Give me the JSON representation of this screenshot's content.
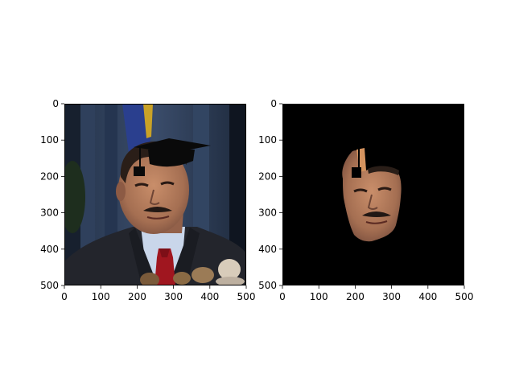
{
  "figure": {
    "background": "#ffffff",
    "axes_color": "#000000"
  },
  "chart_data": [
    {
      "type": "image",
      "content": "photo of a man in a dark suit and red tie at a podium with microphones, wearing a drawn black graduation cap",
      "xlim": [
        0,
        500
      ],
      "ylim": [
        500,
        0
      ],
      "xticks": [
        0,
        100,
        200,
        300,
        400,
        500
      ],
      "yticks": [
        0,
        100,
        200,
        300,
        400,
        500
      ],
      "xtick_labels": [
        "0",
        "100",
        "200",
        "300",
        "400",
        "500"
      ],
      "ytick_labels": [
        "0",
        "100",
        "200",
        "300",
        "400",
        "500"
      ],
      "title": "",
      "xlabel": "",
      "ylabel": "",
      "grid": false,
      "colors": {
        "background_wall": "#2e3d56",
        "suit": "#23252c",
        "shirt": "#c9d6ea",
        "tie": "#a0161f",
        "skin": "#b07a5c",
        "hair": "#2a1e18",
        "cap": "#0a0a0a",
        "flag": "#2a3f8e",
        "flag_gold": "#c9a227"
      }
    },
    {
      "type": "image",
      "content": "segmented face on black background with graduation cap region cut out",
      "xlim": [
        0,
        500
      ],
      "ylim": [
        500,
        0
      ],
      "xticks": [
        0,
        100,
        200,
        300,
        400,
        500
      ],
      "yticks": [
        0,
        100,
        200,
        300,
        400,
        500
      ],
      "xtick_labels": [
        "0",
        "100",
        "200",
        "300",
        "400",
        "500"
      ],
      "ytick_labels": [
        "0",
        "100",
        "200",
        "300",
        "400",
        "500"
      ],
      "title": "",
      "xlabel": "",
      "ylabel": "",
      "grid": false,
      "colors": {
        "background": "#000000",
        "skin": "#b07a5c",
        "skin_bright": "#d4935f"
      }
    }
  ]
}
